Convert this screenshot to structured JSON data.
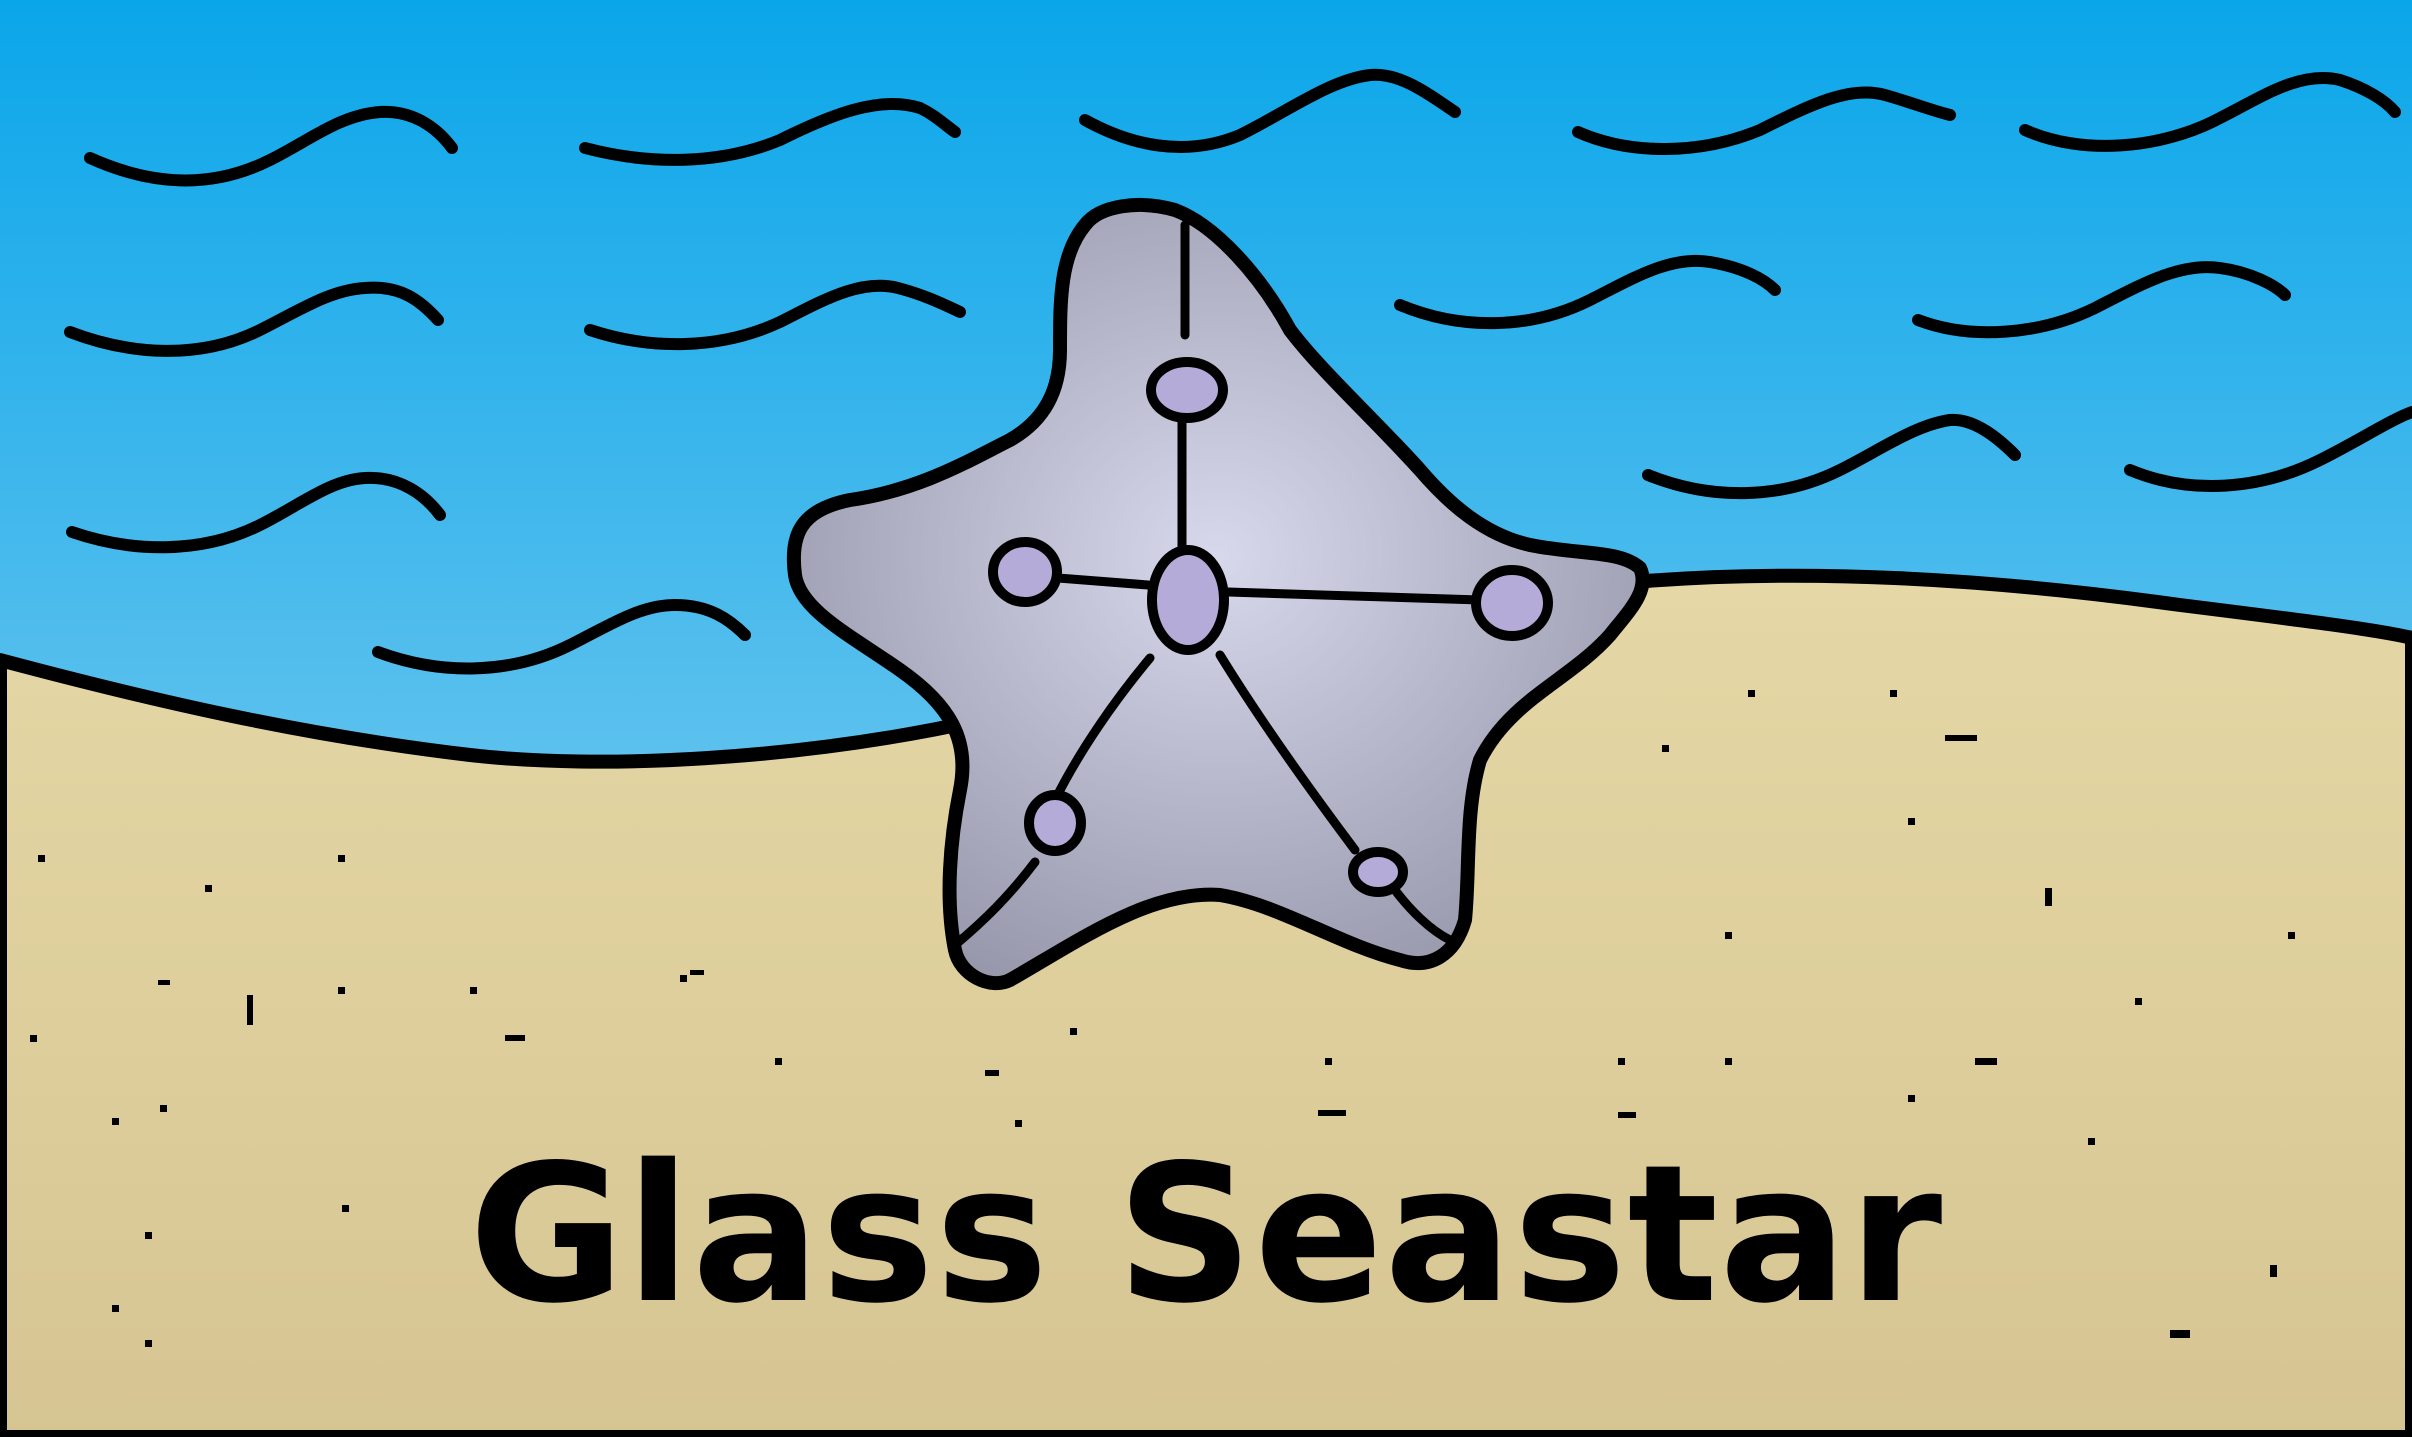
{
  "title": "Glass Seastar",
  "colors": {
    "sky_top": "#0aa6ea",
    "sky_bottom": "#a6d9f1",
    "sand_top": "#e5d8a6",
    "sand_bottom": "#d6c592",
    "outline": "#000000",
    "seastar_center": "#d8d8ec",
    "seastar_edge": "#9898ac",
    "tube_feet": "#b4abd8"
  },
  "icons": [
    "waves",
    "seastar",
    "sand-grains"
  ]
}
